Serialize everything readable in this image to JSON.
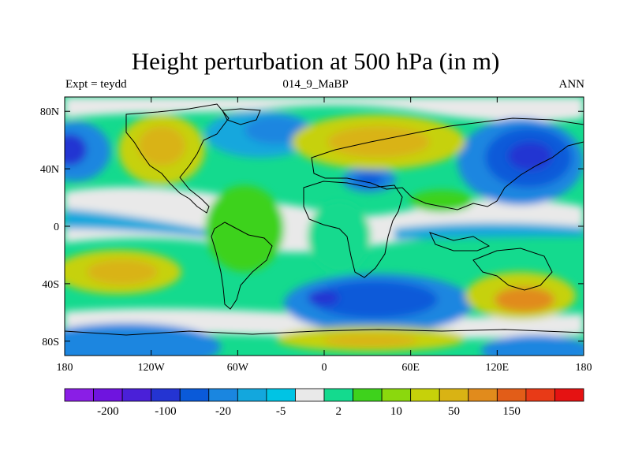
{
  "title": "Height perturbation at 500 hPa (in m)",
  "subtitle_left": "Expt = teydd",
  "subtitle_center": "014_9_MaBP",
  "subtitle_right": "ANN",
  "axes": {
    "x_ticks": [
      "180",
      "120W",
      "60W",
      "0",
      "60E",
      "120E",
      "180"
    ],
    "y_ticks": [
      "80N",
      "40N",
      "0",
      "40S",
      "80S"
    ],
    "lon_range": [
      -180,
      180
    ],
    "lat_range": [
      -90,
      90
    ]
  },
  "colorbar": {
    "labels": [
      "-200",
      "-100",
      "-20",
      "-5",
      "2",
      "10",
      "50",
      "150"
    ],
    "colors": [
      "#8a1ee6",
      "#6f14df",
      "#4a20d8",
      "#2434d2",
      "#0a5ad9",
      "#1a86e0",
      "#13a7dd",
      "#00c4e4",
      "#e9e9e9",
      "#14da8e",
      "#3ed21c",
      "#8bd80d",
      "#c6d10a",
      "#d9b314",
      "#e18b1c",
      "#e25d18",
      "#e83a17",
      "#e51212"
    ]
  }
}
